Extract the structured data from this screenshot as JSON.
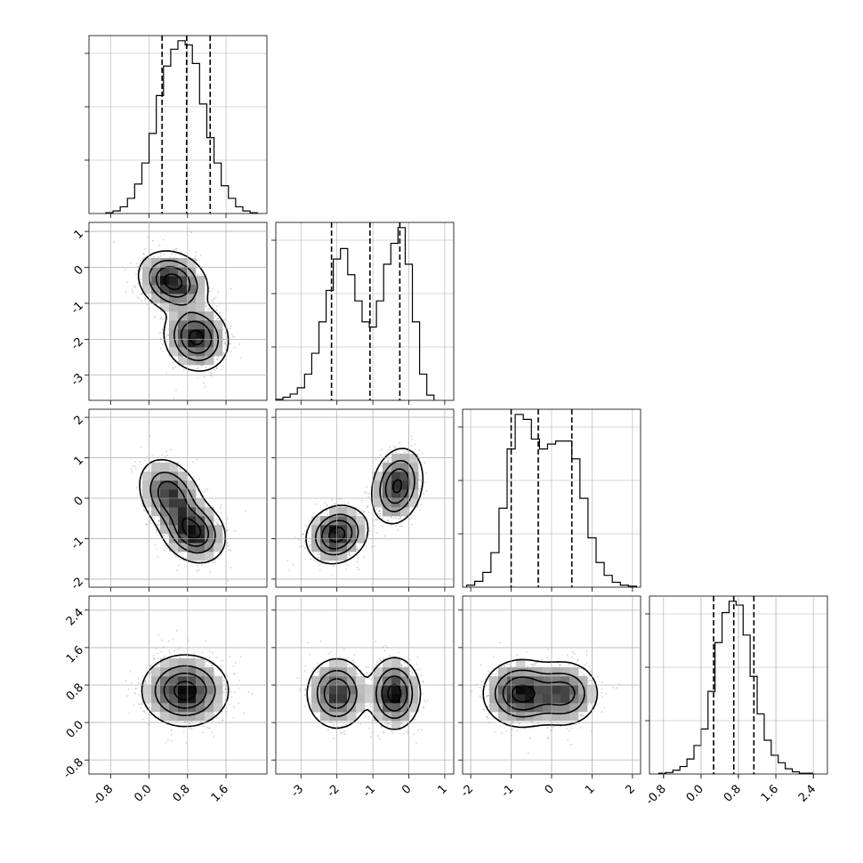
{
  "chart_data": {
    "type": "corner",
    "title": "",
    "grid": true,
    "parameters": [
      {
        "index": 0,
        "range": [
          -1.25,
          2.45
        ],
        "ticks": [
          "-0.8",
          "0.0",
          "0.8",
          "1.6"
        ],
        "tick_values": [
          -0.8,
          0.0,
          0.8,
          1.6
        ],
        "quantiles": [
          0.27,
          0.78,
          1.27
        ],
        "histogram": {
          "bin_edges": [
            -0.9,
            -0.75,
            -0.6,
            -0.45,
            -0.3,
            -0.15,
            0.0,
            0.15,
            0.3,
            0.45,
            0.6,
            0.75,
            0.9,
            1.05,
            1.2,
            1.35,
            1.5,
            1.65,
            1.8,
            1.95,
            2.1,
            2.25
          ],
          "counts": [
            1,
            3,
            8,
            18,
            35,
            60,
            95,
            140,
            175,
            195,
            205,
            200,
            178,
            130,
            90,
            60,
            33,
            18,
            8,
            3,
            1
          ]
        }
      },
      {
        "index": 1,
        "range": [
          -3.7,
          1.25
        ],
        "ticks": [
          "-3",
          "-2",
          "-1",
          "0",
          "1"
        ],
        "tick_values": [
          -3,
          -2,
          -1,
          0,
          1
        ],
        "quantiles": [
          -2.15,
          -1.08,
          -0.25
        ],
        "histogram": {
          "bin_edges": [
            -3.7,
            -3.5,
            -3.3,
            -3.1,
            -2.9,
            -2.7,
            -2.5,
            -2.3,
            -2.1,
            -1.9,
            -1.7,
            -1.5,
            -1.3,
            -1.1,
            -0.9,
            -0.7,
            -0.5,
            -0.3,
            -0.1,
            0.1,
            0.3,
            0.5,
            0.7
          ],
          "counts": [
            1,
            3,
            6,
            12,
            25,
            45,
            75,
            105,
            135,
            145,
            120,
            95,
            75,
            70,
            95,
            130,
            150,
            165,
            130,
            75,
            25,
            5
          ]
        }
      },
      {
        "index": 2,
        "range": [
          -2.2,
          2.2
        ],
        "ticks": [
          "-2",
          "-1",
          "0",
          "1",
          "2"
        ],
        "tick_values": [
          -2,
          -1,
          0,
          1,
          2
        ],
        "quantiles": [
          -1.0,
          -0.33,
          0.5
        ],
        "histogram": {
          "bin_edges": [
            -2.1,
            -1.9,
            -1.7,
            -1.5,
            -1.3,
            -1.1,
            -0.9,
            -0.7,
            -0.5,
            -0.3,
            -0.1,
            0.1,
            0.3,
            0.5,
            0.7,
            0.9,
            1.1,
            1.3,
            1.5,
            1.7,
            1.9,
            2.1
          ],
          "counts": [
            2,
            6,
            15,
            35,
            80,
            140,
            175,
            170,
            150,
            140,
            145,
            148,
            148,
            130,
            90,
            50,
            25,
            12,
            5,
            2,
            1
          ]
        }
      },
      {
        "index": 3,
        "range": [
          -1.1,
          2.7
        ],
        "ticks": [
          "-0.8",
          "0.0",
          "0.8",
          "1.6",
          "2.4"
        ],
        "tick_values": [
          -0.8,
          0.0,
          0.8,
          1.6,
          2.4
        ],
        "quantiles": [
          0.27,
          0.7,
          1.13
        ],
        "histogram": {
          "bin_edges": [
            -0.9,
            -0.75,
            -0.6,
            -0.45,
            -0.3,
            -0.15,
            0.0,
            0.15,
            0.3,
            0.45,
            0.6,
            0.75,
            0.9,
            1.05,
            1.2,
            1.35,
            1.5,
            1.65,
            1.8,
            1.95,
            2.1,
            2.25,
            2.4
          ],
          "counts": [
            1,
            2,
            5,
            10,
            20,
            38,
            60,
            110,
            175,
            215,
            230,
            225,
            185,
            130,
            80,
            45,
            25,
            15,
            7,
            3,
            1,
            1
          ]
        }
      }
    ],
    "panels_2d": [
      {
        "x_param": 0,
        "y_param": 1,
        "components": [
          {
            "weight": 0.5,
            "mean": [
              0.5,
              -0.4
            ],
            "sd": [
              0.32,
              0.38
            ],
            "rho": -0.2
          },
          {
            "weight": 0.5,
            "mean": [
              0.98,
              -1.95
            ],
            "sd": [
              0.3,
              0.42
            ],
            "rho": -0.1
          }
        ]
      },
      {
        "x_param": 0,
        "y_param": 2,
        "components": [
          {
            "weight": 0.5,
            "mean": [
              0.45,
              0.05
            ],
            "sd": [
              0.3,
              0.42
            ],
            "rho": -0.3
          },
          {
            "weight": 0.5,
            "mean": [
              0.92,
              -0.82
            ],
            "sd": [
              0.3,
              0.35
            ],
            "rho": -0.2
          }
        ]
      },
      {
        "x_param": 1,
        "y_param": 2,
        "components": [
          {
            "weight": 0.5,
            "mean": [
              -2.0,
              -0.9
            ],
            "sd": [
              0.38,
              0.32
            ],
            "rho": 0.15
          },
          {
            "weight": 0.5,
            "mean": [
              -0.32,
              0.3
            ],
            "sd": [
              0.32,
              0.42
            ],
            "rho": 0.2
          }
        ]
      },
      {
        "x_param": 0,
        "y_param": 3,
        "components": [
          {
            "weight": 1.0,
            "mean": [
              0.75,
              0.68
            ],
            "sd": [
              0.4,
              0.34
            ],
            "rho": 0.0
          }
        ]
      },
      {
        "x_param": 1,
        "y_param": 3,
        "components": [
          {
            "weight": 0.5,
            "mean": [
              -2.0,
              0.62
            ],
            "sd": [
              0.38,
              0.34
            ],
            "rho": 0.0
          },
          {
            "weight": 0.5,
            "mean": [
              -0.4,
              0.62
            ],
            "sd": [
              0.32,
              0.34
            ],
            "rho": 0.0
          }
        ]
      },
      {
        "x_param": 2,
        "y_param": 3,
        "components": [
          {
            "weight": 0.6,
            "mean": [
              -0.75,
              0.62
            ],
            "sd": [
              0.42,
              0.32
            ],
            "rho": 0.0
          },
          {
            "weight": 0.4,
            "mean": [
              0.3,
              0.62
            ],
            "sd": [
              0.4,
              0.32
            ],
            "rho": 0.0
          }
        ]
      }
    ],
    "contour_levels": [
      "0.5σ",
      "1σ",
      "1.5σ",
      "2σ"
    ]
  }
}
